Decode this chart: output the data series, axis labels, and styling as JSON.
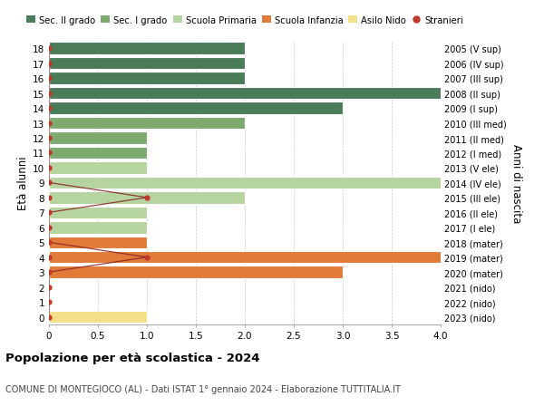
{
  "ages": [
    18,
    17,
    16,
    15,
    14,
    13,
    12,
    11,
    10,
    9,
    8,
    7,
    6,
    5,
    4,
    3,
    2,
    1,
    0
  ],
  "right_labels": [
    "2005 (V sup)",
    "2006 (IV sup)",
    "2007 (III sup)",
    "2008 (II sup)",
    "2009 (I sup)",
    "2010 (III med)",
    "2011 (II med)",
    "2012 (I med)",
    "2013 (V ele)",
    "2014 (IV ele)",
    "2015 (III ele)",
    "2016 (II ele)",
    "2017 (I ele)",
    "2018 (mater)",
    "2019 (mater)",
    "2020 (mater)",
    "2021 (nido)",
    "2022 (nido)",
    "2023 (nido)"
  ],
  "bar_values": [
    2,
    2,
    2,
    4,
    3,
    2,
    1,
    1,
    1,
    4,
    2,
    1,
    1,
    1,
    4,
    3,
    0,
    0,
    1
  ],
  "bar_colors": [
    "#4a7c59",
    "#4a7c59",
    "#4a7c59",
    "#4a7c59",
    "#4a7c59",
    "#7dab6e",
    "#7dab6e",
    "#7dab6e",
    "#b5d4a0",
    "#b5d4a0",
    "#b5d4a0",
    "#b5d4a0",
    "#b5d4a0",
    "#e07b39",
    "#e07b39",
    "#e07b39",
    "#f5e08a",
    "#f5e08a",
    "#f5e08a"
  ],
  "stranieri_x": [
    0,
    0,
    0,
    0,
    0,
    0,
    0,
    0,
    0,
    0,
    1,
    0,
    0,
    0,
    1,
    0,
    0,
    0,
    0
  ],
  "legend_labels": [
    "Sec. II grado",
    "Sec. I grado",
    "Scuola Primaria",
    "Scuola Infanzia",
    "Asilo Nido",
    "Stranieri"
  ],
  "legend_colors": [
    "#4a7c59",
    "#7dab6e",
    "#b5d4a0",
    "#e07b39",
    "#f5e08a",
    "#c0392b"
  ],
  "ylabel_left": "Età alunni",
  "ylabel_right": "Anni di nascita",
  "title": "Popolazione per età scolastica - 2024",
  "subtitle": "COMUNE DI MONTEGIOCO (AL) - Dati ISTAT 1° gennaio 2024 - Elaborazione TUTTITALIA.IT",
  "xlim": [
    0,
    4.0
  ],
  "bg_color": "#ffffff",
  "grid_color": "#cccccc",
  "bar_edge_color": "#ffffff",
  "stranieri_color": "#c0392b",
  "stranieri_line_color": "#8b2020"
}
